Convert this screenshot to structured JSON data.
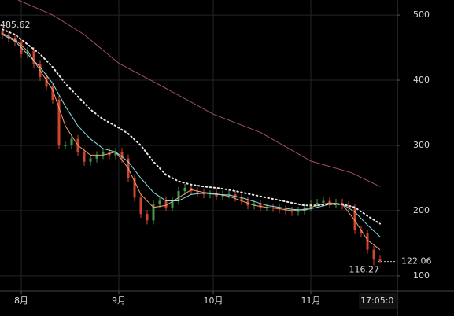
{
  "chart_data": {
    "type": "candlestick",
    "x": [
      -6,
      -4,
      -2,
      0,
      2,
      4,
      6,
      8,
      10,
      12,
      14,
      16,
      18,
      20,
      22,
      24,
      26,
      28,
      30,
      32,
      34,
      36,
      38,
      40,
      42,
      44,
      46,
      48,
      50,
      52,
      54,
      56,
      58,
      60,
      62,
      64,
      66,
      68,
      70,
      72,
      74,
      76,
      78,
      80,
      82,
      84,
      86,
      88,
      90,
      92,
      94,
      96,
      98,
      100,
      102,
      104,
      106,
      108,
      110,
      112,
      114
    ],
    "open": [
      475,
      470,
      465,
      458,
      440,
      445,
      425,
      405,
      390,
      370,
      300,
      300,
      310,
      290,
      275,
      280,
      285,
      290,
      285,
      290,
      280,
      250,
      220,
      195,
      185,
      210,
      215,
      205,
      215,
      230,
      235,
      230,
      228,
      225,
      228,
      222,
      225,
      225,
      220,
      215,
      208,
      210,
      205,
      205,
      204,
      202,
      200,
      198,
      200,
      205,
      210,
      212,
      215,
      210,
      212,
      208,
      205,
      170,
      165,
      140,
      125
    ],
    "high": [
      485.62,
      476,
      471,
      464,
      451,
      451,
      431,
      411,
      396,
      376,
      306,
      316,
      316,
      296,
      286,
      291,
      296,
      296,
      296,
      296,
      286,
      256,
      226,
      201,
      216,
      221,
      221,
      221,
      236,
      241,
      241,
      236,
      234,
      231,
      234,
      231,
      231,
      231,
      226,
      221,
      216,
      216,
      211,
      211,
      210,
      208,
      206,
      206,
      211,
      216,
      218,
      221,
      221,
      218,
      218,
      214,
      211,
      176,
      171,
      146,
      131
    ],
    "low": [
      464,
      459,
      452,
      434,
      434,
      419,
      399,
      384,
      364,
      294,
      294,
      294,
      284,
      269,
      269,
      274,
      279,
      279,
      279,
      274,
      244,
      214,
      189,
      179,
      179,
      204,
      199,
      199,
      209,
      224,
      224,
      222,
      219,
      219,
      216,
      216,
      219,
      214,
      209,
      202,
      202,
      199,
      199,
      198,
      196,
      194,
      192,
      192,
      194,
      199,
      204,
      206,
      204,
      204,
      202,
      199,
      164,
      159,
      134,
      116.27,
      119
    ],
    "close": [
      470,
      465,
      458,
      440,
      445,
      425,
      405,
      390,
      370,
      300,
      300,
      310,
      290,
      275,
      280,
      285,
      290,
      285,
      290,
      280,
      250,
      220,
      195,
      185,
      210,
      215,
      205,
      215,
      230,
      235,
      230,
      228,
      225,
      228,
      222,
      225,
      225,
      220,
      215,
      208,
      210,
      205,
      205,
      204,
      202,
      200,
      198,
      200,
      205,
      210,
      212,
      215,
      210,
      212,
      208,
      205,
      170,
      165,
      140,
      125,
      122
    ],
    "up_color": "#3f9e4d",
    "down_color": "#d2452f",
    "series": [
      {
        "color": "#f0a070",
        "style": "solid",
        "x": [
          -6,
          -2,
          2,
          6,
          10,
          14,
          18,
          22,
          26,
          30,
          34,
          38,
          42,
          46,
          50,
          54,
          58,
          62,
          66,
          70,
          74,
          78,
          82,
          86,
          90,
          94,
          98,
          102,
          106,
          110,
          114
        ],
        "values": [
          472,
          462,
          445,
          415,
          385,
          330,
          300,
          285,
          285,
          290,
          265,
          225,
          205,
          208,
          220,
          232,
          228,
          226,
          222,
          215,
          208,
          205,
          203,
          200,
          202,
          208,
          212,
          210,
          185,
          155,
          140
        ]
      },
      {
        "color": "#8fe0e8",
        "style": "solid",
        "x": [
          -6,
          -2,
          2,
          6,
          10,
          14,
          18,
          22,
          26,
          30,
          34,
          38,
          42,
          46,
          50,
          54,
          58,
          62,
          66,
          70,
          74,
          78,
          82,
          86,
          90,
          94,
          98,
          102,
          106,
          110,
          114
        ],
        "values": [
          470,
          460,
          440,
          420,
          395,
          360,
          330,
          310,
          295,
          290,
          275,
          250,
          228,
          215,
          215,
          225,
          227,
          225,
          224,
          220,
          214,
          208,
          205,
          202,
          201,
          205,
          210,
          210,
          198,
          178,
          160
        ]
      },
      {
        "color": "#e8e8e8",
        "style": "dotted",
        "x": [
          -6,
          -2,
          2,
          6,
          10,
          14,
          18,
          22,
          26,
          30,
          34,
          38,
          42,
          46,
          50,
          54,
          58,
          62,
          66,
          70,
          74,
          78,
          82,
          86,
          90,
          94,
          98,
          102,
          106,
          110,
          114
        ],
        "values": [
          478,
          470,
          455,
          440,
          420,
          395,
          375,
          355,
          340,
          330,
          318,
          300,
          275,
          255,
          245,
          240,
          237,
          235,
          232,
          228,
          224,
          220,
          216,
          212,
          208,
          208,
          210,
          210,
          205,
          192,
          180
        ]
      },
      {
        "color": "#a0506a",
        "style": "solid",
        "x": [
          -1,
          10,
          20,
          31,
          45,
          61,
          76,
          92,
          105,
          114
        ],
        "values": [
          523,
          500,
          470,
          426,
          390,
          348,
          320,
          276,
          258,
          237
        ]
      }
    ],
    "last_price": 122.06,
    "countdown": "17:05:0",
    "xlim": [
      -6.75,
      119.5
    ],
    "xticks": [
      {
        "value": 0,
        "label": "8月"
      },
      {
        "value": 31,
        "label": "9月"
      },
      {
        "value": 61,
        "label": "10月"
      },
      {
        "value": 92,
        "label": "11月"
      }
    ],
    "ylim": [
      77,
      523
    ],
    "yticks": [
      100,
      200,
      300,
      400,
      500
    ],
    "grid": true
  }
}
